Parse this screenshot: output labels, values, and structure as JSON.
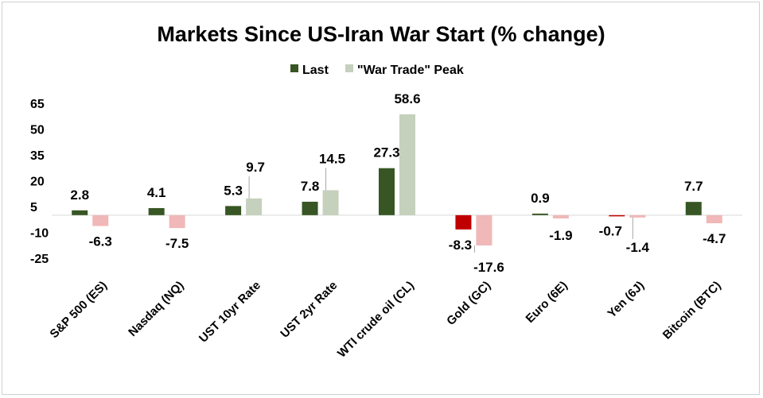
{
  "chart_data": {
    "type": "bar",
    "title": "Markets Since US-Iran War Start (% change)",
    "categories": [
      "S&P 500 (ES)",
      "Nasdaq (NQ)",
      "UST 10yr Rate",
      "UST 2yr Rate",
      "WTI crude oil (CL)",
      "Gold (GC)",
      "Euro (6E)",
      "Yen (6J)",
      "Bitcoin (BTC)"
    ],
    "series": [
      {
        "name": "Last",
        "values": [
          2.8,
          4.1,
          5.3,
          7.8,
          27.3,
          -8.3,
          0.9,
          -0.7,
          7.7
        ],
        "color": "#375623",
        "negative_color": "#c00000"
      },
      {
        "name": "\"War Trade\" Peak",
        "values": [
          -6.3,
          -7.5,
          9.7,
          14.5,
          58.6,
          -17.6,
          -1.9,
          -1.4,
          -4.7
        ],
        "color": "#c5d0bd",
        "negative_color": "#f0b8b8"
      }
    ],
    "y_ticks": [
      "65",
      "50",
      "35",
      "20",
      "5",
      "-10",
      "-25"
    ],
    "ylim": [
      -25,
      65
    ],
    "legend_position": "top",
    "grid": false
  }
}
